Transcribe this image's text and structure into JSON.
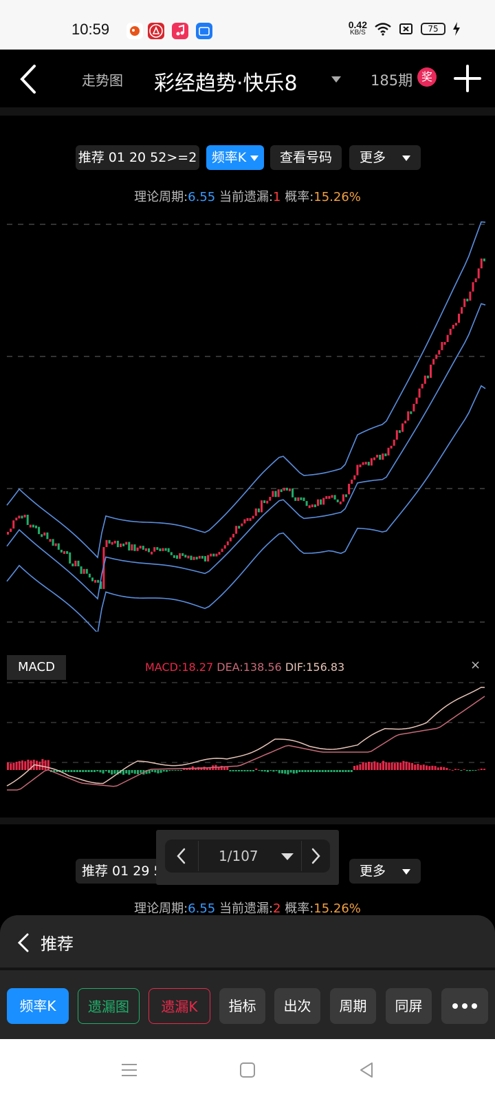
{
  "status_bar": {
    "time": "10:59",
    "net_speed_value": "0.42",
    "net_speed_unit": "KB/S",
    "battery": "75"
  },
  "nav": {
    "trend_label": "走势图",
    "title": "彩经趋势·快乐8",
    "issue_count": "185期",
    "prize_badge": "奖"
  },
  "panel1": {
    "chips": {
      "recommend": "推荐 01 20 52>=2",
      "freq_k": "频率K",
      "view_numbers": "查看号码",
      "more": "更多"
    },
    "info": {
      "cycle_label": "理论周期:",
      "cycle_value": "6.55",
      "miss_label": " 当前遗漏:",
      "miss_value": "1",
      "prob_label": " 概率:",
      "prob_value": "15.26%"
    }
  },
  "macd": {
    "label": "MACD",
    "macd_value": "MACD:18.27",
    "dea_value": "DEA:138.56",
    "dif_value": "DIF:156.83",
    "close": "×"
  },
  "panel2": {
    "chips": {
      "recommend": "推荐 01 29 5",
      "more": "更多"
    },
    "info": {
      "cycle_label": "理论周期:",
      "cycle_value": "6.55",
      "miss_label": " 当前遗漏:",
      "miss_value": "2",
      "prob_label": " 概率:",
      "prob_value": "15.26%"
    }
  },
  "pager": {
    "text": "1/107"
  },
  "sheet": {
    "title": "推荐",
    "tabs": [
      "频率K",
      "遗漏图",
      "遗漏K",
      "指标",
      "出次",
      "周期",
      "同屏"
    ]
  },
  "colors": {
    "accent_blue": "#1a8fff",
    "up_red": "#e8294a",
    "down_green": "#1fae6a",
    "band_blue": "#5a8fe0",
    "dif_line": "#e8c4b8",
    "dea_line": "#c86a78"
  }
}
